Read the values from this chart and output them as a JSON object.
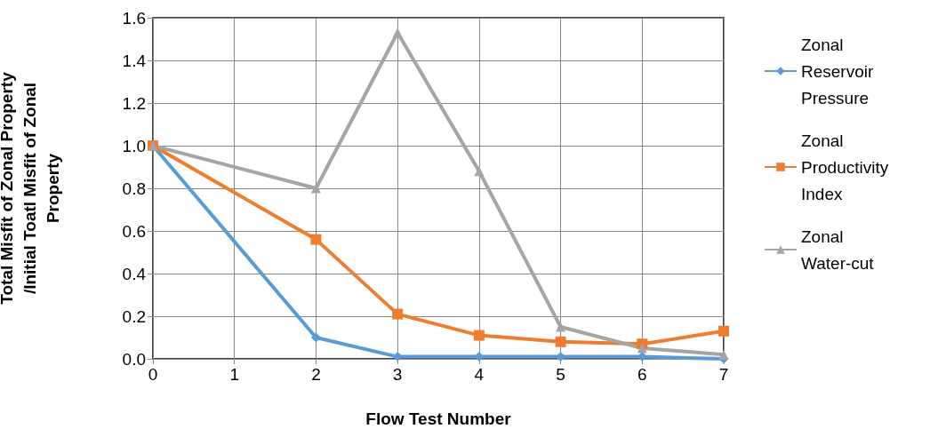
{
  "chart_data": {
    "type": "line",
    "x": [
      0,
      2,
      3,
      4,
      5,
      6,
      7
    ],
    "xlabel": "Flow Test Number",
    "ylabel": "Total Misfit of Zonal Property /Initial Toatl Misfit of Zonal Property",
    "xlim": [
      0,
      7
    ],
    "xticks": [
      0,
      1,
      2,
      3,
      4,
      5,
      6,
      7
    ],
    "ylim": [
      0,
      1.6
    ],
    "yticks": [
      {
        "value": 0,
        "label": "0.0"
      },
      {
        "value": 0.2,
        "label": "0.2"
      },
      {
        "value": 0.4,
        "label": "0.4"
      },
      {
        "value": 0.6,
        "label": "0.6"
      },
      {
        "value": 0.8,
        "label": "0.8"
      },
      {
        "value": 1,
        "label": "1.0"
      },
      {
        "value": 1.2,
        "label": "1.2"
      },
      {
        "value": 1.4,
        "label": "1.4"
      },
      {
        "value": 1.6,
        "label": "1.6"
      }
    ],
    "grid": true,
    "legend": "right",
    "line_style": "solid",
    "series": [
      {
        "name": "Zonal Reservoir Pressure",
        "color": "#5b9bd5",
        "marker": "diamond",
        "values": [
          1.0,
          0.1,
          0.01,
          0.01,
          0.01,
          0.01,
          0.0
        ]
      },
      {
        "name": "Zonal Productivity Index",
        "color": "#ed7d31",
        "marker": "square",
        "values": [
          1.0,
          0.56,
          0.21,
          0.11,
          0.08,
          0.07,
          0.13
        ]
      },
      {
        "name": "Zonal Water-cut",
        "color": "#a5a5a5",
        "marker": "triangle",
        "values": [
          1.0,
          0.8,
          1.53,
          0.88,
          0.15,
          0.05,
          0.02
        ]
      }
    ]
  }
}
